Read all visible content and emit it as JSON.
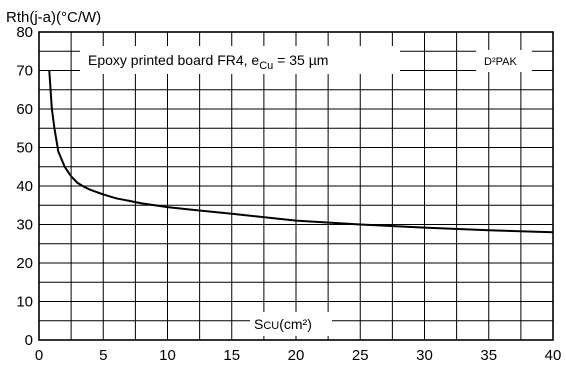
{
  "chart_data": {
    "type": "line",
    "ylabel": "Rth(j-a)(°C/W)",
    "xlabel": "S",
    "xlabel_sub": "CU",
    "xlabel_unit": "(cm²)",
    "annotation": {
      "prefix": "Epoxy printed board FR4, e",
      "sub": "Cu",
      "suffix": " = 35 µm"
    },
    "package_label": "D²PAK",
    "xlim": [
      0,
      40
    ],
    "ylim": [
      0,
      80
    ],
    "x_ticks": [
      0,
      5,
      10,
      15,
      20,
      25,
      30,
      35,
      40
    ],
    "y_ticks": [
      0,
      10,
      20,
      30,
      40,
      50,
      60,
      70,
      80
    ],
    "x_tick_labels": [
      "0",
      "5",
      "10",
      "15",
      "20",
      "25",
      "30",
      "35",
      "40"
    ],
    "y_tick_labels": [
      "0",
      "10",
      "20",
      "30",
      "40",
      "50",
      "60",
      "70",
      "80"
    ],
    "grid": true,
    "series": [
      {
        "x": [
          0.8,
          0.9,
          1.0,
          1.2,
          1.5,
          2.0,
          2.5,
          3.0,
          3.5,
          4.0,
          5.0,
          6.0,
          8.0,
          10,
          12,
          15,
          20,
          25,
          30,
          35,
          40
        ],
        "y": [
          70,
          65,
          60,
          55,
          49,
          45,
          42.5,
          40.8,
          39.8,
          39,
          37.8,
          36.8,
          35.5,
          34.5,
          33.8,
          32.8,
          31,
          30,
          29.2,
          28.5,
          28
        ]
      }
    ]
  }
}
